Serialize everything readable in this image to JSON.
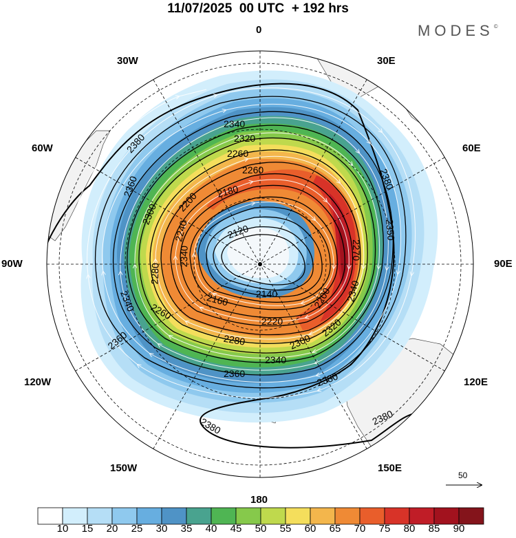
{
  "title": "11/07/2025  00 UTC  + 192 hrs",
  "logo": "MODES",
  "logo_mark": "©",
  "longitude_labels": {
    "lon_0": "0",
    "lon_30e": "30E",
    "lon_60e": "60E",
    "lon_90e": "90E",
    "lon_120e": "120E",
    "lon_150e": "150E",
    "lon_180": "180",
    "lon_150w": "150W",
    "lon_120w": "120W",
    "lon_90w": "90W",
    "lon_60w": "60W",
    "lon_30w": "30W"
  },
  "contour_labels": [
    "2380",
    "2340",
    "2360",
    "2320",
    "2300",
    "2260",
    "2180",
    "2120",
    "2200",
    "2280",
    "2160",
    "2140",
    "2220",
    "2380",
    "2340",
    "2360",
    "2380",
    "2380",
    "2380",
    "2360",
    "2340",
    "2300",
    "2260",
    "2200",
    "2240",
    "2270",
    "2320",
    "2340",
    "2280",
    "2260",
    "2350",
    "2340"
  ],
  "wind_scale_label": "50",
  "colorbar": {
    "labels": [
      "10",
      "15",
      "20",
      "25",
      "30",
      "35",
      "40",
      "45",
      "50",
      "55",
      "60",
      "65",
      "70",
      "75",
      "80",
      "85",
      "90"
    ],
    "colors": [
      "#ffffff",
      "#d2eefc",
      "#b5def6",
      "#8fc9ee",
      "#67aee0",
      "#4f93c6",
      "#49a38f",
      "#4fb553",
      "#86c94b",
      "#bfd94d",
      "#f4de5c",
      "#f3b64c",
      "#ef8a35",
      "#e95e2b",
      "#d83328",
      "#c01d27",
      "#a2121e",
      "#84141b"
    ]
  }
}
